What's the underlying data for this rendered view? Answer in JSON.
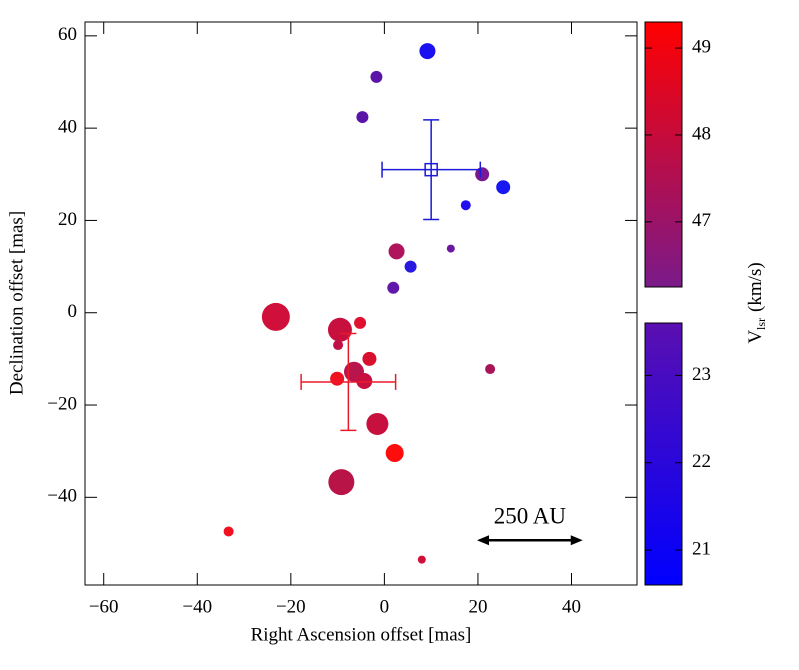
{
  "chart_data": {
    "type": "scatter",
    "xlabel": "Right Ascension offset [mas]",
    "ylabel": "Declination offset [mas]",
    "xlim": [
      -64,
      54
    ],
    "ylim": [
      -59,
      63
    ],
    "xticks": [
      {
        "value": -60,
        "label": "−60"
      },
      {
        "value": -40,
        "label": "−40"
      },
      {
        "value": -20,
        "label": "−20"
      },
      0,
      20,
      40
    ],
    "yticks": [
      {
        "value": -40,
        "label": "−40"
      },
      {
        "value": -20,
        "label": "−20"
      },
      0,
      20,
      40,
      60
    ],
    "points": {
      "x": [
        9.2,
        -1.7,
        -4.7,
        20.9,
        25.4,
        17.4,
        14.2,
        2.6,
        5.6,
        1.9,
        -23.2,
        -9.5,
        -5.2,
        -9.9,
        -3.2,
        -6.5,
        -10.1,
        -4.3,
        22.6,
        -1.5,
        2.2,
        -9.2,
        -33.3,
        8.0
      ],
      "y": [
        56.7,
        51.1,
        42.4,
        30.0,
        27.2,
        23.3,
        13.9,
        13.3,
        10.0,
        5.4,
        -0.9,
        -3.7,
        -2.2,
        -7.0,
        -10.0,
        -12.8,
        -14.3,
        -14.8,
        -12.2,
        -24.1,
        -30.4,
        -36.7,
        -47.4,
        -53.5
      ],
      "sizes": [
        8,
        6,
        6,
        7,
        7,
        5,
        4,
        8,
        6,
        6,
        14,
        12,
        6,
        5,
        7,
        10,
        7,
        8,
        5,
        11,
        9,
        13,
        5,
        4
      ],
      "colors": [
        "#1a10f0",
        "#5a14a8",
        "#5a14a8",
        "#7a1890",
        "#1a18f0",
        "#2010f0",
        "#6a18a0",
        "#b0145a",
        "#2818e0",
        "#6018a8",
        "#d0103a",
        "#c8103e",
        "#e01030",
        "#c01048",
        "#d81030",
        "#b8144e",
        "#f01020",
        "#c81040",
        "#a81458",
        "#c8103e",
        "#ff0d0d",
        "#b81448",
        "#f01020",
        "#d01038"
      ]
    },
    "error_points": [
      {
        "x": 10,
        "y": 31,
        "xerr": 10.5,
        "yerr": 10.8,
        "color": "#1a1ad8",
        "marker": "square"
      },
      {
        "x": -7.7,
        "y": -15,
        "xerr": 10.1,
        "yerr": 10.5,
        "color": "#e81a2a",
        "marker": "none"
      }
    ],
    "scale_bar": {
      "text": "250 AU",
      "x": [
        19.8,
        42.4
      ],
      "y": -49.3
    },
    "colorbar": {
      "label": "V",
      "label_sub": "lsr",
      "label_unit": "(km/s)",
      "segments": [
        {
          "range": [
            46.25,
            49.3
          ],
          "ticks": [
            47,
            48,
            49
          ],
          "colors": [
            "#7a1a8a",
            "#ff0000"
          ]
        },
        {
          "range": [
            20.6,
            23.6
          ],
          "ticks": [
            21,
            22,
            23
          ],
          "colors": [
            "#0000ff",
            "#5a0fb0"
          ]
        }
      ]
    }
  }
}
